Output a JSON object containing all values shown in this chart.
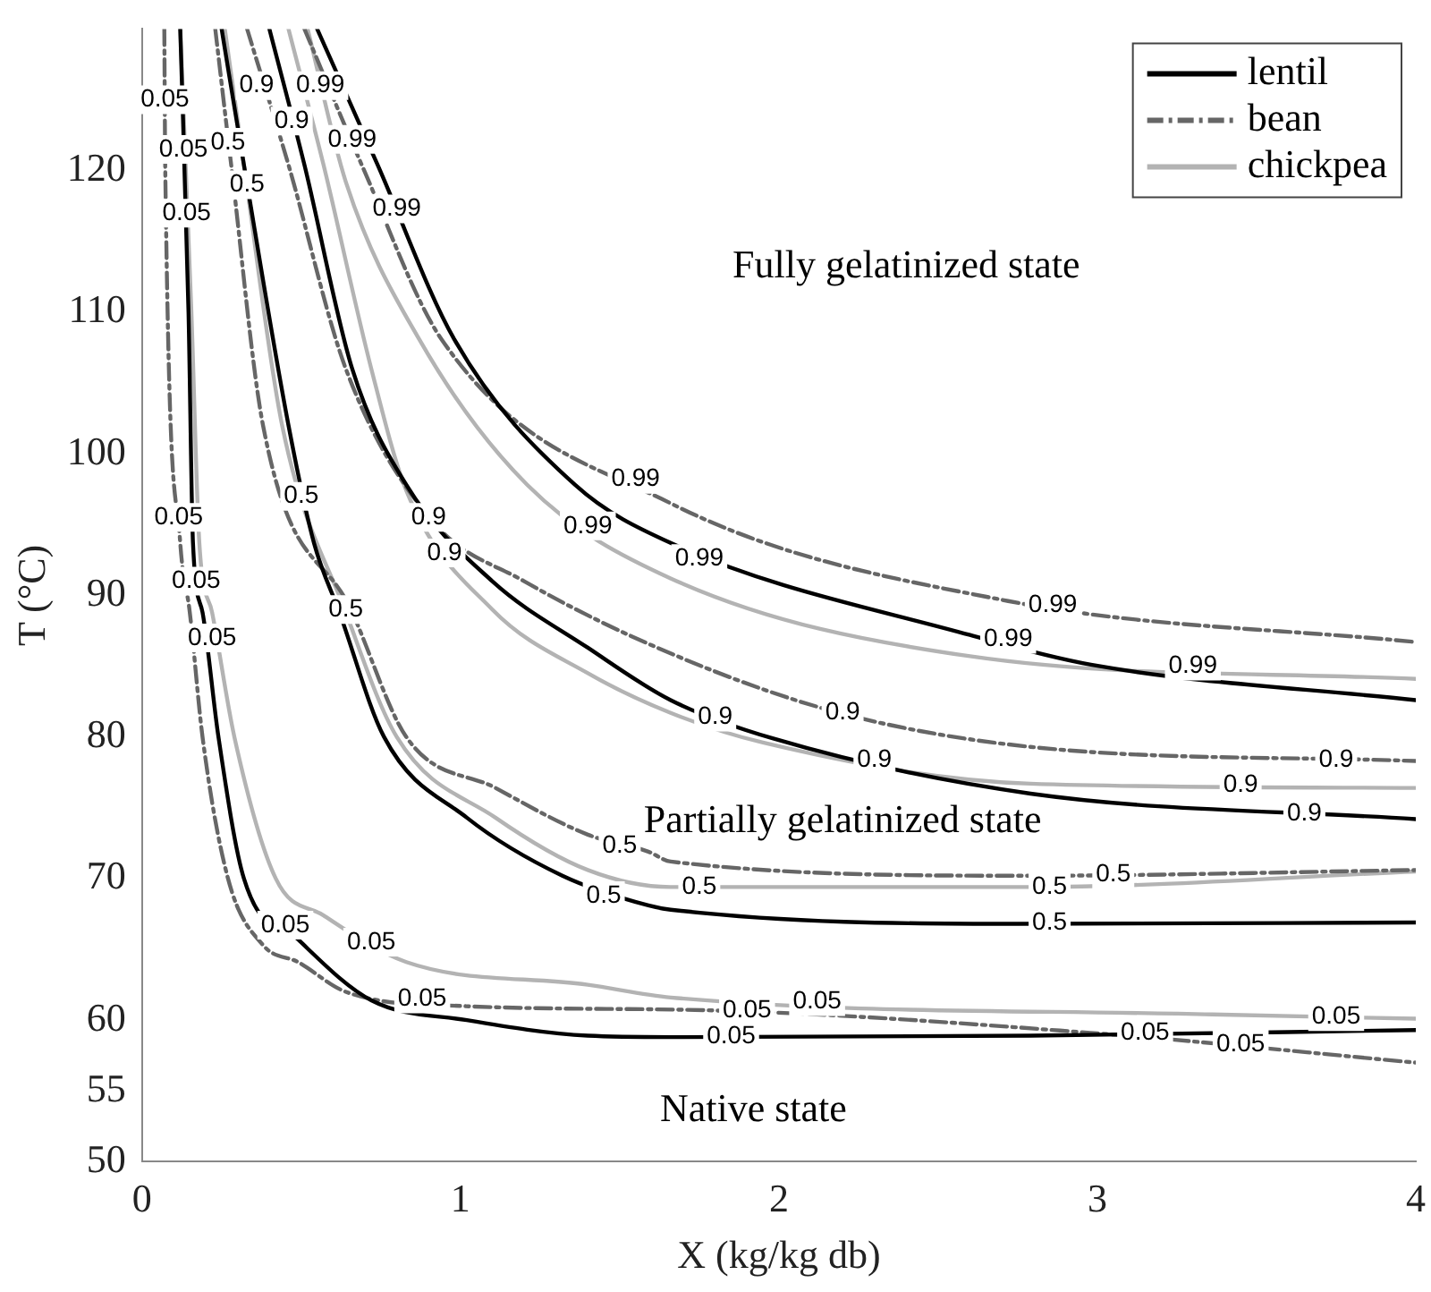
{
  "chart_data": {
    "type": "line",
    "xlabel": "X (kg/kg db)",
    "ylabel": "T (°C)",
    "xlim": [
      0,
      4
    ],
    "ylim": [
      50,
      130
    ],
    "xticks": [
      0,
      1,
      2,
      3,
      4
    ],
    "yticks": [
      50,
      55,
      60,
      70,
      80,
      90,
      100,
      110,
      120
    ],
    "grid": false,
    "legend": "top right",
    "marker": "none",
    "series": [
      {
        "name": "lentil",
        "color": "#000000",
        "line_style": "solid",
        "x": [
          0.12,
          0.146,
          0.16,
          0.19,
          0.24,
          0.32,
          0.49,
          0.72,
          1.02,
          1.4,
          1.66,
          2.79,
          4
        ],
        "values": [
          130,
          110,
          93.7,
          88.8,
          80,
          70,
          65.7,
          61.4,
          60,
          58.9,
          58.8,
          58.9,
          59.3
        ]
      },
      {
        "name": "bean",
        "color": "#666666",
        "line_style": "dashed",
        "x": [
          0.07,
          0.073,
          0.12,
          0.15,
          0.19,
          0.27,
          0.38,
          0.49,
          0.64,
          1,
          1.77,
          2.98,
          4
        ],
        "values": [
          130,
          120,
          93.7,
          88.8,
          80,
          70,
          65.3,
          64.1,
          62,
          61,
          60.7,
          59.1,
          57
        ]
      },
      {
        "name": "chickpea",
        "color": "#b3b3b3",
        "line_style": "solid",
        "x": [
          0.12,
          0.155,
          0.18,
          0.22,
          0.29,
          0.42,
          0.57,
          0.83,
          1.4,
          1.66,
          3.36,
          4
        ],
        "values": [
          130,
          110,
          93.7,
          88.8,
          80,
          70,
          67.4,
          64.1,
          62.5,
          61.6,
          60.4,
          60.1
        ]
      },
      {
        "color": "#000000",
        "line_style": "solid",
        "x": [
          0.25,
          0.32,
          0.46,
          0.54,
          0.62,
          0.76,
          1.02,
          1.32,
          1.59,
          1.66,
          2.75,
          4
        ],
        "values": [
          130,
          120.4,
          102,
          93.7,
          88.8,
          80,
          74.3,
          70.2,
          68.1,
          67.8,
          66.8,
          66.9
        ]
      },
      {
        "color": "#666666",
        "line_style": "dashed",
        "x": [
          0.23,
          0.28,
          0.38,
          0.66,
          0.83,
          1.11,
          1.4,
          1.59,
          1.66,
          2.79,
          4
        ],
        "values": [
          130,
          120.4,
          102,
          88.8,
          80,
          76.4,
          73.1,
          71.9,
          71.2,
          70.2,
          70.6
        ]
      },
      {
        "color": "#b3b3b3",
        "line_style": "solid",
        "x": [
          0.26,
          0.32,
          0.44,
          0.64,
          0.8,
          1.11,
          1.4,
          1.66,
          2.79,
          4
        ],
        "values": [
          130,
          120.4,
          102,
          88.8,
          80,
          74.3,
          70.6,
          69.4,
          69.4,
          70.5
        ]
      },
      {
        "color": "#000000",
        "line_style": "solid",
        "x": [
          0.4,
          0.51,
          0.66,
          0.83,
          1.1,
          1.4,
          1.66,
          1.98,
          2.79,
          4
        ],
        "values": [
          130,
          120.4,
          106,
          97.8,
          91,
          86.3,
          82.6,
          79.9,
          76,
          74.2
        ]
      },
      {
        "color": "#666666",
        "line_style": "dashed",
        "x": [
          0.33,
          0.46,
          0.64,
          0.91,
          1.2,
          1.66,
          2.19,
          2.79,
          4
        ],
        "values": [
          130,
          120.4,
          106,
          95.3,
          91,
          85.9,
          81.7,
          79.3,
          78.3
        ]
      },
      {
        "color": "#b3b3b3",
        "line_style": "solid",
        "x": [
          0.46,
          0.57,
          0.72,
          0.83,
          1.1,
          1.4,
          1.66,
          1.95,
          2.79,
          4
        ],
        "values": [
          130,
          120.4,
          106,
          97.4,
          89,
          84.5,
          81.7,
          79.6,
          76.7,
          76.4
        ]
      },
      {
        "color": "#000000",
        "line_style": "solid",
        "x": [
          0.55,
          0.74,
          0.98,
          1.36,
          1.66,
          2.6,
          2.98,
          4
        ],
        "values": [
          130,
          120.4,
          108.1,
          97.8,
          93.7,
          87.2,
          85.1,
          82.6
        ]
      },
      {
        "color": "#666666",
        "line_style": "dashed",
        "x": [
          0.51,
          0.69,
          0.94,
          1.66,
          2.72,
          4
        ],
        "values": [
          130,
          120.4,
          108.1,
          96.5,
          89.6,
          86.7
        ]
      },
      {
        "color": "#b3b3b3",
        "line_style": "solid",
        "x": [
          0.52,
          0.64,
          0.87,
          1.21,
          1.66,
          2.6,
          4
        ],
        "values": [
          130,
          119.2,
          108.1,
          97.8,
          91.2,
          85.7,
          84.1
        ]
      }
    ],
    "annotations": [
      "Fully gelatinized state",
      "Partially gelatinized state",
      "Native state",
      {
        "text": "0.05",
        "x": 0.072,
        "y": 125
      },
      {
        "text": "0.05",
        "x": 0.13,
        "y": 121.5
      },
      {
        "text": "0.05",
        "x": 0.14,
        "y": 117
      },
      {
        "text": "0.05",
        "x": 0.115,
        "y": 95.5
      },
      {
        "text": "0.05",
        "x": 0.17,
        "y": 91
      },
      {
        "text": "0.05",
        "x": 0.22,
        "y": 87
      },
      {
        "text": "0.05",
        "x": 0.72,
        "y": 65.5
      },
      {
        "text": "0.05",
        "x": 0.45,
        "y": 66.7
      },
      {
        "text": "0.05",
        "x": 0.88,
        "y": 61.5
      },
      {
        "text": "0.05",
        "x": 1.9,
        "y": 60.7
      },
      {
        "text": "0.05",
        "x": 2.12,
        "y": 61.3
      },
      {
        "text": "0.05",
        "x": 1.85,
        "y": 58.85
      },
      {
        "text": "0.05",
        "x": 3.45,
        "y": 58.3
      },
      {
        "text": "0.05",
        "x": 3.15,
        "y": 59.1
      },
      {
        "text": "0.05",
        "x": 3.75,
        "y": 60.25
      },
      {
        "text": "0.5",
        "x": 0.27,
        "y": 122
      },
      {
        "text": "0.5",
        "x": 0.33,
        "y": 119
      },
      {
        "text": "0.5",
        "x": 0.5,
        "y": 97
      },
      {
        "text": "0.5",
        "x": 0.64,
        "y": 89
      },
      {
        "text": "0.5",
        "x": 1.5,
        "y": 72.3
      },
      {
        "text": "0.5",
        "x": 1.75,
        "y": 69.4
      },
      {
        "text": "0.5",
        "x": 1.45,
        "y": 68.8
      },
      {
        "text": "0.5",
        "x": 2.85,
        "y": 69.4
      },
      {
        "text": "0.5",
        "x": 3.05,
        "y": 70.3
      },
      {
        "text": "0.5",
        "x": 2.85,
        "y": 66.9
      },
      {
        "text": "0.9",
        "x": 0.36,
        "y": 126
      },
      {
        "text": "0.9",
        "x": 0.47,
        "y": 123.5
      },
      {
        "text": "0.9",
        "x": 0.9,
        "y": 95.5
      },
      {
        "text": "0.9",
        "x": 0.95,
        "y": 93
      },
      {
        "text": "0.9",
        "x": 2.2,
        "y": 81.7
      },
      {
        "text": "0.9",
        "x": 1.8,
        "y": 81.4
      },
      {
        "text": "0.9",
        "x": 2.3,
        "y": 78.4
      },
      {
        "text": "0.9",
        "x": 3.75,
        "y": 78.4
      },
      {
        "text": "0.9",
        "x": 3.45,
        "y": 76.6
      },
      {
        "text": "0.9",
        "x": 3.65,
        "y": 74.6
      },
      {
        "text": "0.99",
        "x": 0.66,
        "y": 122.2
      },
      {
        "text": "0.99",
        "x": 0.8,
        "y": 117.3
      },
      {
        "text": "0.99",
        "x": 0.56,
        "y": 126
      },
      {
        "text": "0.99",
        "x": 1.55,
        "y": 98.2
      },
      {
        "text": "0.99",
        "x": 1.75,
        "y": 92.6
      },
      {
        "text": "0.99",
        "x": 1.4,
        "y": 94.9
      },
      {
        "text": "0.99",
        "x": 2.86,
        "y": 89.3
      },
      {
        "text": "0.99",
        "x": 2.72,
        "y": 86.9
      },
      {
        "text": "0.99",
        "x": 3.3,
        "y": 85
      }
    ]
  }
}
